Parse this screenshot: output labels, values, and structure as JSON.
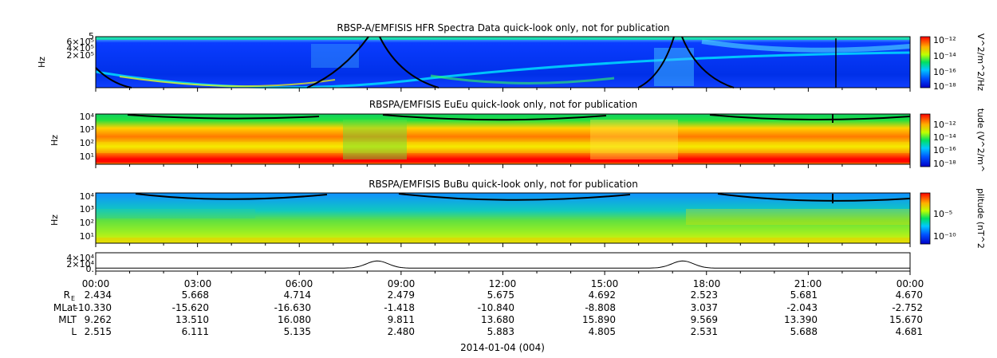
{
  "chart_data": [
    {
      "type": "heatmap",
      "title": "RBSP-A/EMFISIS  HFR Spectra Data quick-look only, not for publication",
      "ylabel": "Hz",
      "yticks": [
        "5",
        "6×10⁵",
        "4×10⁵",
        "2×10⁵"
      ],
      "colorbar_label": "V^2/m^2/Hz",
      "colorbar_ticks": [
        "10⁻¹²",
        "10⁻¹⁴",
        "10⁻¹⁶",
        "10⁻¹⁸"
      ]
    },
    {
      "type": "heatmap",
      "title": "RBSPA/EMFISIS  EuEu quick-look only, not for publication",
      "ylabel": "Hz",
      "yticks": [
        "10⁴",
        "10³",
        "10²",
        "10¹"
      ],
      "colorbar_label": "tude (V^2/m^",
      "colorbar_ticks": [
        "10⁻¹²",
        "10⁻¹⁴",
        "10⁻¹⁶",
        "10⁻¹⁸"
      ]
    },
    {
      "type": "heatmap",
      "title": "RBSPA/EMFISIS  BuBu quick-look only, not for publication",
      "ylabel": "Hz",
      "yticks": [
        "10⁴",
        "10³",
        "10²",
        "10¹"
      ],
      "colorbar_label": "plitude (nT^2",
      "colorbar_ticks": [
        "10⁻⁵",
        "10⁻¹⁰"
      ]
    },
    {
      "type": "line",
      "yticks": [
        "4×10⁴",
        "2×10⁴",
        "0."
      ],
      "peaks_at_hours": [
        8.3,
        17.3
      ]
    }
  ],
  "time_ticks": [
    "00:00",
    "03:00",
    "06:00",
    "09:00",
    "12:00",
    "15:00",
    "18:00",
    "21:00",
    "00:00"
  ],
  "ephemeris_rows": [
    {
      "label": "R",
      "sub": "E",
      "values": [
        "2.434",
        "5.668",
        "4.714",
        "2.479",
        "5.675",
        "4.692",
        "2.523",
        "5.681",
        "4.670"
      ]
    },
    {
      "label": "MLat",
      "sub": "",
      "values": [
        "-10.330",
        "-15.620",
        "-16.630",
        "-1.418",
        "-10.840",
        "-8.808",
        "3.037",
        "-2.043",
        "-2.752"
      ]
    },
    {
      "label": "MLT",
      "sub": "",
      "values": [
        "9.262",
        "13.510",
        "16.080",
        "9.811",
        "13.680",
        "15.890",
        "9.569",
        "13.390",
        "15.670"
      ]
    },
    {
      "label": "L",
      "sub": "",
      "values": [
        "2.515",
        "6.111",
        "5.135",
        "2.480",
        "5.883",
        "4.805",
        "2.531",
        "5.688",
        "4.681"
      ]
    }
  ],
  "date_label": "2014-01-04 (004)"
}
